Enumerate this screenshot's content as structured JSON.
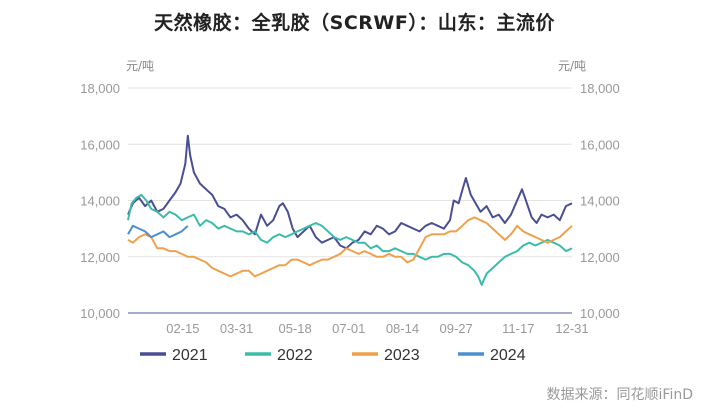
{
  "chart_data": {
    "type": "line",
    "title": "天然橡胶：全乳胶（SCRWF）：山东：主流价",
    "y_unit_left": "元/吨",
    "y_unit_right": "元/吨",
    "ylim": [
      10000,
      18000
    ],
    "y_ticks": [
      "10,000",
      "12,000",
      "14,000",
      "16,000",
      "18,000"
    ],
    "y_tick_values": [
      10000,
      12000,
      14000,
      16000,
      18000
    ],
    "x_ticks": [
      "02-15",
      "03-31",
      "05-18",
      "07-01",
      "08-14",
      "09-27",
      "11-17",
      "12-31"
    ],
    "x_tick_days": [
      46,
      90,
      138,
      182,
      226,
      270,
      321,
      365
    ],
    "x_range_days": [
      1,
      365
    ],
    "grid": "horizontal",
    "legend_position": "bottom",
    "source": "数据来源：同花顺iFinD",
    "series": [
      {
        "name": "2021",
        "color": "#4a4f94",
        "points": [
          [
            1,
            13500
          ],
          [
            5,
            13900
          ],
          [
            10,
            14100
          ],
          [
            15,
            13800
          ],
          [
            20,
            14000
          ],
          [
            25,
            13600
          ],
          [
            30,
            13700
          ],
          [
            35,
            14000
          ],
          [
            40,
            14300
          ],
          [
            44,
            14600
          ],
          [
            48,
            15300
          ],
          [
            50,
            16300
          ],
          [
            52,
            15600
          ],
          [
            55,
            15000
          ],
          [
            60,
            14600
          ],
          [
            65,
            14400
          ],
          [
            70,
            14200
          ],
          [
            75,
            13800
          ],
          [
            80,
            13700
          ],
          [
            85,
            13400
          ],
          [
            90,
            13500
          ],
          [
            95,
            13300
          ],
          [
            100,
            13000
          ],
          [
            105,
            12800
          ],
          [
            110,
            13500
          ],
          [
            115,
            13100
          ],
          [
            120,
            13300
          ],
          [
            125,
            13800
          ],
          [
            128,
            13900
          ],
          [
            132,
            13600
          ],
          [
            136,
            13000
          ],
          [
            140,
            12700
          ],
          [
            145,
            12900
          ],
          [
            150,
            13100
          ],
          [
            155,
            12700
          ],
          [
            160,
            12500
          ],
          [
            165,
            12600
          ],
          [
            170,
            12700
          ],
          [
            175,
            12400
          ],
          [
            180,
            12300
          ],
          [
            185,
            12500
          ],
          [
            190,
            12600
          ],
          [
            195,
            12900
          ],
          [
            200,
            12800
          ],
          [
            205,
            13100
          ],
          [
            210,
            13000
          ],
          [
            215,
            12800
          ],
          [
            220,
            12900
          ],
          [
            225,
            13200
          ],
          [
            230,
            13100
          ],
          [
            235,
            13000
          ],
          [
            240,
            12900
          ],
          [
            245,
            13100
          ],
          [
            250,
            13200
          ],
          [
            255,
            13100
          ],
          [
            260,
            13000
          ],
          [
            265,
            13300
          ],
          [
            268,
            14000
          ],
          [
            272,
            13900
          ],
          [
            276,
            14500
          ],
          [
            278,
            14800
          ],
          [
            282,
            14200
          ],
          [
            286,
            13900
          ],
          [
            290,
            13600
          ],
          [
            295,
            13800
          ],
          [
            300,
            13400
          ],
          [
            305,
            13500
          ],
          [
            310,
            13200
          ],
          [
            315,
            13500
          ],
          [
            320,
            14000
          ],
          [
            324,
            14400
          ],
          [
            328,
            13900
          ],
          [
            332,
            13400
          ],
          [
            336,
            13200
          ],
          [
            340,
            13500
          ],
          [
            345,
            13400
          ],
          [
            350,
            13500
          ],
          [
            355,
            13300
          ],
          [
            360,
            13800
          ],
          [
            365,
            13900
          ]
        ]
      },
      {
        "name": "2022",
        "color": "#3cbca8",
        "points": [
          [
            1,
            13300
          ],
          [
            4,
            13900
          ],
          [
            8,
            14100
          ],
          [
            12,
            14200
          ],
          [
            16,
            14000
          ],
          [
            20,
            13700
          ],
          [
            25,
            13600
          ],
          [
            30,
            13400
          ],
          [
            35,
            13600
          ],
          [
            40,
            13500
          ],
          [
            45,
            13300
          ],
          [
            50,
            13400
          ],
          [
            55,
            13500
          ],
          [
            60,
            13100
          ],
          [
            65,
            13300
          ],
          [
            70,
            13200
          ],
          [
            75,
            13000
          ],
          [
            80,
            13100
          ],
          [
            85,
            13000
          ],
          [
            90,
            12900
          ],
          [
            95,
            12900
          ],
          [
            100,
            12800
          ],
          [
            105,
            12900
          ],
          [
            110,
            12600
          ],
          [
            115,
            12500
          ],
          [
            120,
            12700
          ],
          [
            125,
            12800
          ],
          [
            130,
            12700
          ],
          [
            135,
            12800
          ],
          [
            140,
            12900
          ],
          [
            145,
            13000
          ],
          [
            150,
            13100
          ],
          [
            155,
            13200
          ],
          [
            160,
            13100
          ],
          [
            165,
            12900
          ],
          [
            170,
            12700
          ],
          [
            175,
            12600
          ],
          [
            180,
            12700
          ],
          [
            185,
            12600
          ],
          [
            190,
            12500
          ],
          [
            195,
            12500
          ],
          [
            200,
            12300
          ],
          [
            205,
            12400
          ],
          [
            210,
            12200
          ],
          [
            215,
            12200
          ],
          [
            220,
            12300
          ],
          [
            225,
            12200
          ],
          [
            230,
            12100
          ],
          [
            235,
            12100
          ],
          [
            240,
            12000
          ],
          [
            245,
            11900
          ],
          [
            250,
            12000
          ],
          [
            255,
            12000
          ],
          [
            260,
            12100
          ],
          [
            265,
            12100
          ],
          [
            270,
            12000
          ],
          [
            275,
            11800
          ],
          [
            280,
            11700
          ],
          [
            285,
            11500
          ],
          [
            288,
            11300
          ],
          [
            291,
            11000
          ],
          [
            295,
            11400
          ],
          [
            300,
            11600
          ],
          [
            305,
            11800
          ],
          [
            310,
            12000
          ],
          [
            315,
            12100
          ],
          [
            320,
            12200
          ],
          [
            325,
            12400
          ],
          [
            330,
            12500
          ],
          [
            335,
            12400
          ],
          [
            340,
            12500
          ],
          [
            345,
            12600
          ],
          [
            350,
            12500
          ],
          [
            355,
            12400
          ],
          [
            360,
            12200
          ],
          [
            365,
            12300
          ]
        ]
      },
      {
        "name": "2023",
        "color": "#f0a04b",
        "points": [
          [
            1,
            12600
          ],
          [
            5,
            12500
          ],
          [
            10,
            12700
          ],
          [
            15,
            12800
          ],
          [
            20,
            12700
          ],
          [
            25,
            12300
          ],
          [
            30,
            12300
          ],
          [
            35,
            12200
          ],
          [
            40,
            12200
          ],
          [
            45,
            12100
          ],
          [
            50,
            12000
          ],
          [
            55,
            12000
          ],
          [
            60,
            11900
          ],
          [
            65,
            11800
          ],
          [
            70,
            11600
          ],
          [
            75,
            11500
          ],
          [
            80,
            11400
          ],
          [
            85,
            11300
          ],
          [
            90,
            11400
          ],
          [
            95,
            11500
          ],
          [
            100,
            11500
          ],
          [
            105,
            11300
          ],
          [
            110,
            11400
          ],
          [
            115,
            11500
          ],
          [
            120,
            11600
          ],
          [
            125,
            11700
          ],
          [
            130,
            11700
          ],
          [
            135,
            11900
          ],
          [
            140,
            11900
          ],
          [
            145,
            11800
          ],
          [
            150,
            11700
          ],
          [
            155,
            11800
          ],
          [
            160,
            11900
          ],
          [
            165,
            11900
          ],
          [
            170,
            12000
          ],
          [
            175,
            12100
          ],
          [
            180,
            12300
          ],
          [
            185,
            12200
          ],
          [
            190,
            12100
          ],
          [
            195,
            12200
          ],
          [
            200,
            12100
          ],
          [
            205,
            12000
          ],
          [
            210,
            12000
          ],
          [
            215,
            12100
          ],
          [
            220,
            12000
          ],
          [
            225,
            12000
          ],
          [
            230,
            11800
          ],
          [
            235,
            11900
          ],
          [
            240,
            12300
          ],
          [
            245,
            12700
          ],
          [
            250,
            12800
          ],
          [
            255,
            12800
          ],
          [
            260,
            12800
          ],
          [
            265,
            12900
          ],
          [
            270,
            12900
          ],
          [
            275,
            13100
          ],
          [
            280,
            13300
          ],
          [
            285,
            13400
          ],
          [
            290,
            13300
          ],
          [
            295,
            13200
          ],
          [
            300,
            13000
          ],
          [
            305,
            12800
          ],
          [
            310,
            12600
          ],
          [
            315,
            12800
          ],
          [
            320,
            13100
          ],
          [
            325,
            12900
          ],
          [
            330,
            12800
          ],
          [
            335,
            12700
          ],
          [
            340,
            12600
          ],
          [
            345,
            12500
          ],
          [
            350,
            12600
          ],
          [
            355,
            12700
          ],
          [
            360,
            12900
          ],
          [
            365,
            13100
          ]
        ]
      },
      {
        "name": "2024",
        "color": "#4a8fd1",
        "points": [
          [
            1,
            12800
          ],
          [
            5,
            13100
          ],
          [
            10,
            13000
          ],
          [
            15,
            12900
          ],
          [
            20,
            12700
          ],
          [
            25,
            12800
          ],
          [
            30,
            12900
          ],
          [
            35,
            12700
          ],
          [
            40,
            12800
          ],
          [
            45,
            12900
          ],
          [
            50,
            13100
          ]
        ]
      }
    ]
  }
}
